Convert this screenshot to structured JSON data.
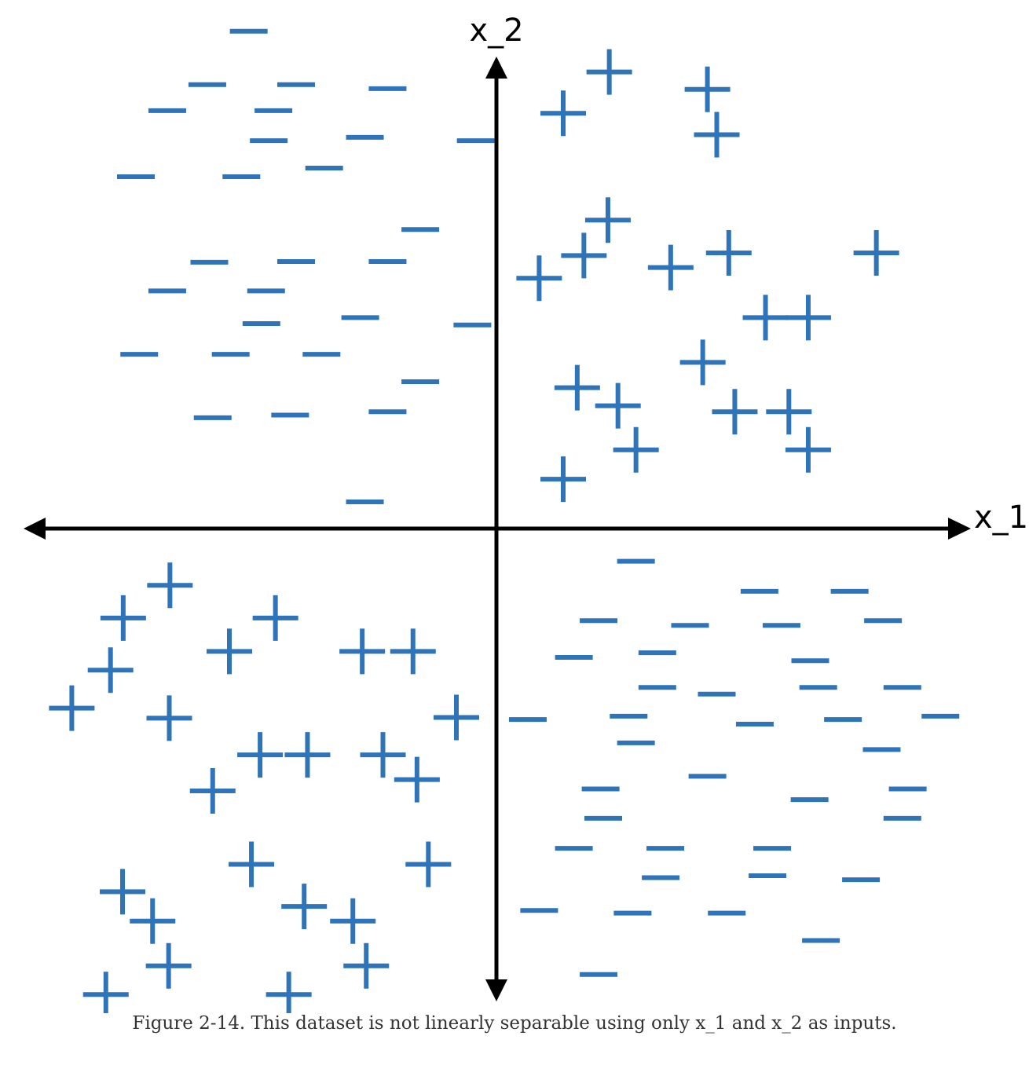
{
  "figure": {
    "caption": "Figure 2-14. This dataset is not linearly separable using only x_1 and x_2 as inputs.",
    "marker_color": "#2f73b9",
    "axis_color": "#000000",
    "x_axis_label": "x_1",
    "y_axis_label": "x_2"
  },
  "chart_data": {
    "type": "scatter",
    "xlabel": "x_1",
    "ylabel": "x_2",
    "grid": false,
    "series": [
      {
        "marker": "+",
        "points": [
          [
            1.69,
            6.84
          ],
          [
            1.0,
            6.22
          ],
          [
            3.3,
            5.9
          ],
          [
            3.16,
            6.58
          ],
          [
            1.67,
            4.62
          ],
          [
            1.31,
            4.09
          ],
          [
            0.64,
            3.75
          ],
          [
            2.61,
            3.91
          ],
          [
            3.48,
            4.13
          ],
          [
            5.69,
            4.13
          ],
          [
            4.03,
            3.16
          ],
          [
            4.67,
            3.16
          ],
          [
            3.09,
            2.49
          ],
          [
            1.21,
            2.11
          ],
          [
            1.82,
            1.84
          ],
          [
            3.57,
            1.75
          ],
          [
            4.38,
            1.75
          ],
          [
            2.09,
            1.18
          ],
          [
            4.67,
            1.18
          ],
          [
            1.0,
            0.74
          ],
          [
            -4.89,
            -0.85
          ],
          [
            -5.59,
            -1.34
          ],
          [
            -3.31,
            -1.34
          ],
          [
            -4.0,
            -1.84
          ],
          [
            -2.01,
            -1.84
          ],
          [
            -1.25,
            -1.84
          ],
          [
            -5.78,
            -2.12
          ],
          [
            -6.36,
            -2.69
          ],
          [
            -4.9,
            -2.84
          ],
          [
            -0.6,
            -2.83
          ],
          [
            -3.54,
            -3.39
          ],
          [
            -2.83,
            -3.39
          ],
          [
            -1.7,
            -3.39
          ],
          [
            -1.19,
            -3.76
          ],
          [
            -4.25,
            -3.93
          ],
          [
            -1.02,
            -5.03
          ],
          [
            -3.67,
            -5.03
          ],
          [
            -5.6,
            -5.44
          ],
          [
            -2.88,
            -5.66
          ],
          [
            -5.15,
            -5.88
          ],
          [
            -2.15,
            -5.88
          ],
          [
            -4.91,
            -6.55
          ],
          [
            -1.95,
            -6.55
          ],
          [
            -5.85,
            -6.98
          ],
          [
            -3.11,
            -6.98
          ]
        ]
      },
      {
        "marker": "-",
        "points": [
          [
            -3.71,
            7.45
          ],
          [
            -4.33,
            6.65
          ],
          [
            -3.0,
            6.65
          ],
          [
            -1.63,
            6.59
          ],
          [
            -4.93,
            6.26
          ],
          [
            -3.34,
            6.26
          ],
          [
            -1.97,
            5.86
          ],
          [
            -3.41,
            5.81
          ],
          [
            -0.31,
            5.81
          ],
          [
            -5.4,
            5.27
          ],
          [
            -3.82,
            5.27
          ],
          [
            -2.58,
            5.4
          ],
          [
            -1.14,
            4.48
          ],
          [
            -4.3,
            3.99
          ],
          [
            -3.0,
            4.0
          ],
          [
            -1.63,
            4.0
          ],
          [
            -4.93,
            3.56
          ],
          [
            -3.45,
            3.56
          ],
          [
            -2.04,
            3.16
          ],
          [
            -3.52,
            3.07
          ],
          [
            -0.36,
            3.05
          ],
          [
            -5.35,
            2.61
          ],
          [
            -3.98,
            2.61
          ],
          [
            -2.62,
            2.61
          ],
          [
            -1.14,
            2.2
          ],
          [
            -4.25,
            1.66
          ],
          [
            -3.09,
            1.7
          ],
          [
            -1.63,
            1.75
          ],
          [
            -1.97,
            0.4
          ],
          [
            2.09,
            -0.49
          ],
          [
            3.94,
            -0.94
          ],
          [
            5.29,
            -0.94
          ],
          [
            1.53,
            -1.38
          ],
          [
            2.9,
            -1.45
          ],
          [
            4.27,
            -1.45
          ],
          [
            5.79,
            -1.38
          ],
          [
            1.16,
            -1.93
          ],
          [
            2.41,
            -1.86
          ],
          [
            4.7,
            -1.98
          ],
          [
            2.41,
            -2.38
          ],
          [
            3.3,
            -2.48
          ],
          [
            4.82,
            -2.38
          ],
          [
            6.08,
            -2.38
          ],
          [
            0.47,
            -2.86
          ],
          [
            1.98,
            -2.81
          ],
          [
            3.87,
            -2.93
          ],
          [
            5.19,
            -2.86
          ],
          [
            6.65,
            -2.81
          ],
          [
            2.09,
            -3.21
          ],
          [
            5.77,
            -3.31
          ],
          [
            3.16,
            -3.71
          ],
          [
            1.56,
            -3.9
          ],
          [
            4.69,
            -4.06
          ],
          [
            6.16,
            -3.9
          ],
          [
            1.6,
            -4.34
          ],
          [
            6.08,
            -4.34
          ],
          [
            1.16,
            -4.79
          ],
          [
            2.53,
            -4.79
          ],
          [
            4.13,
            -4.79
          ],
          [
            2.46,
            -5.23
          ],
          [
            4.06,
            -5.2
          ],
          [
            5.46,
            -5.26
          ],
          [
            0.64,
            -5.72
          ],
          [
            2.04,
            -5.76
          ],
          [
            3.45,
            -5.76
          ],
          [
            4.86,
            -6.17
          ],
          [
            1.53,
            -6.68
          ]
        ]
      }
    ]
  }
}
